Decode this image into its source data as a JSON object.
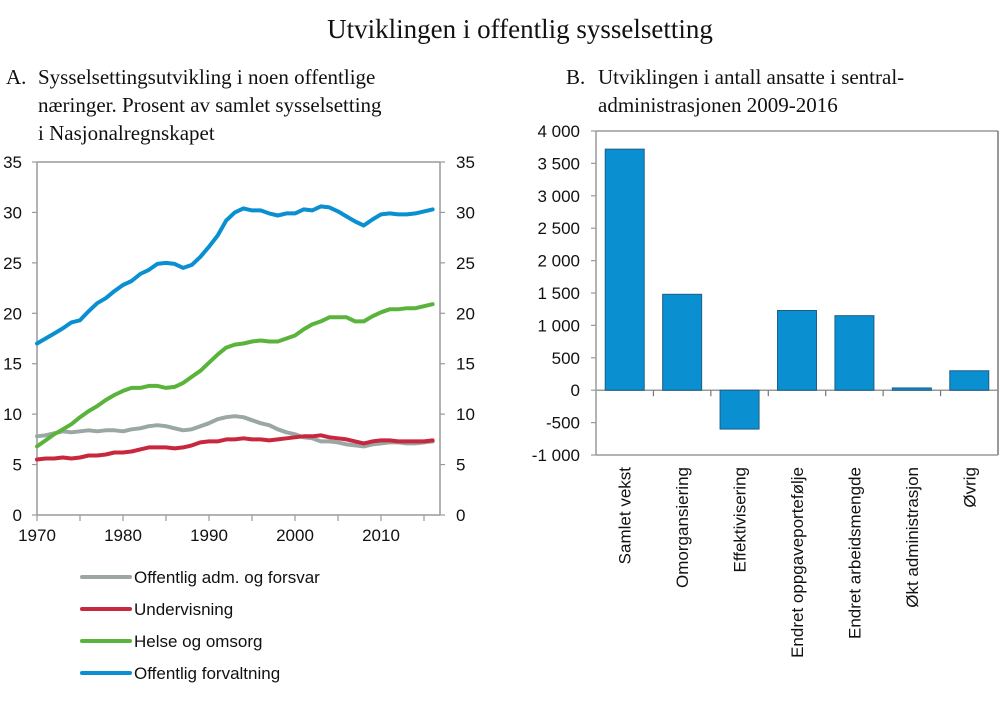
{
  "title": "Utviklingen i offentlig sysselsetting",
  "chart_data": [
    {
      "id": "A",
      "type": "line",
      "panel_letter": "A.",
      "title_lines": [
        "Sysselsettingsutvikling i noen offentlige",
        "næringer. Prosent av samlet sysselsetting",
        "i Nasjonalregnskapet"
      ],
      "xlabel": "",
      "ylabel": "",
      "xlim": [
        1970,
        2017
      ],
      "ylim": [
        0,
        35
      ],
      "x_ticks": [
        1970,
        1980,
        1990,
        2000,
        2010
      ],
      "x_minor_ticks": [
        1975,
        1985,
        1995,
        2005,
        2015
      ],
      "y_ticks": [
        0,
        5,
        10,
        15,
        20,
        25,
        30,
        35
      ],
      "y_ticks_right": [
        0,
        5,
        10,
        15,
        20,
        25,
        30,
        35
      ],
      "grid": false,
      "legend_position": "bottom",
      "x": [
        1970,
        1971,
        1972,
        1973,
        1974,
        1975,
        1976,
        1977,
        1978,
        1979,
        1980,
        1981,
        1982,
        1983,
        1984,
        1985,
        1986,
        1987,
        1988,
        1989,
        1990,
        1991,
        1992,
        1993,
        1994,
        1995,
        1996,
        1997,
        1998,
        1999,
        2000,
        2001,
        2002,
        2003,
        2004,
        2005,
        2006,
        2007,
        2008,
        2009,
        2010,
        2011,
        2012,
        2013,
        2014,
        2015,
        2016
      ],
      "series": [
        {
          "name": "Offentlig adm. og forsvar",
          "color": "#9aa7a4",
          "values": [
            7.8,
            7.9,
            8.1,
            8.3,
            8.2,
            8.3,
            8.4,
            8.3,
            8.4,
            8.4,
            8.3,
            8.5,
            8.6,
            8.8,
            8.9,
            8.8,
            8.6,
            8.4,
            8.5,
            8.8,
            9.1,
            9.5,
            9.7,
            9.8,
            9.7,
            9.4,
            9.1,
            8.9,
            8.5,
            8.2,
            8.0,
            7.7,
            7.6,
            7.3,
            7.3,
            7.2,
            7.0,
            6.9,
            6.8,
            7.0,
            7.1,
            7.2,
            7.2,
            7.1,
            7.1,
            7.2,
            7.3
          ]
        },
        {
          "name": "Undervisning",
          "color": "#c8283e",
          "values": [
            5.5,
            5.6,
            5.6,
            5.7,
            5.6,
            5.7,
            5.9,
            5.9,
            6.0,
            6.2,
            6.2,
            6.3,
            6.5,
            6.7,
            6.7,
            6.7,
            6.6,
            6.7,
            6.9,
            7.2,
            7.3,
            7.3,
            7.5,
            7.5,
            7.6,
            7.5,
            7.5,
            7.4,
            7.5,
            7.6,
            7.7,
            7.8,
            7.8,
            7.9,
            7.7,
            7.6,
            7.5,
            7.3,
            7.1,
            7.3,
            7.4,
            7.4,
            7.3,
            7.3,
            7.3,
            7.3,
            7.4
          ]
        },
        {
          "name": "Helse og omsorg",
          "color": "#5ab43c",
          "values": [
            6.8,
            7.4,
            8.0,
            8.5,
            9.0,
            9.7,
            10.3,
            10.8,
            11.4,
            11.9,
            12.3,
            12.6,
            12.6,
            12.8,
            12.8,
            12.6,
            12.7,
            13.1,
            13.7,
            14.3,
            15.1,
            15.9,
            16.6,
            16.9,
            17.0,
            17.2,
            17.3,
            17.2,
            17.2,
            17.5,
            17.8,
            18.4,
            18.9,
            19.2,
            19.6,
            19.6,
            19.6,
            19.2,
            19.2,
            19.7,
            20.1,
            20.4,
            20.4,
            20.5,
            20.5,
            20.7,
            20.9
          ]
        },
        {
          "name": "Offentlig forvaltning",
          "color": "#0a8fd0",
          "values": [
            17.0,
            17.5,
            18.0,
            18.5,
            19.1,
            19.3,
            20.2,
            21.0,
            21.5,
            22.2,
            22.8,
            23.2,
            23.9,
            24.3,
            24.9,
            25.0,
            24.9,
            24.5,
            24.8,
            25.6,
            26.6,
            27.7,
            29.2,
            30.0,
            30.4,
            30.2,
            30.2,
            29.9,
            29.7,
            29.9,
            29.9,
            30.3,
            30.2,
            30.6,
            30.5,
            30.1,
            29.6,
            29.1,
            28.7,
            29.3,
            29.8,
            29.9,
            29.8,
            29.8,
            29.9,
            30.1,
            30.3
          ]
        }
      ]
    },
    {
      "id": "B",
      "type": "bar",
      "panel_letter": "B.",
      "title_lines": [
        "Utviklingen i antall ansatte i sentral-",
        "administrasjonen 2009-2016"
      ],
      "xlabel": "",
      "ylabel": "",
      "ylim": [
        -1000,
        4000
      ],
      "y_ticks": [
        -1000,
        -500,
        0,
        500,
        1000,
        1500,
        2000,
        2500,
        3000,
        3500,
        4000
      ],
      "y_tick_labels": [
        "-1 000",
        "-500",
        "0",
        "500",
        "1 000",
        "1 500",
        "2 000",
        "2 500",
        "3 000",
        "3 500",
        "4 000"
      ],
      "grid": false,
      "bar_color": "#0a8fd0",
      "categories": [
        "Samlet vekst",
        "Omorgansiering",
        "Effektivisering",
        "Endret oppgaveportefølje",
        "Endret arbeidsmengde",
        "Økt administrasjon",
        "Øvrig"
      ],
      "values": [
        3720,
        1480,
        -600,
        1230,
        1150,
        35,
        300
      ]
    }
  ]
}
